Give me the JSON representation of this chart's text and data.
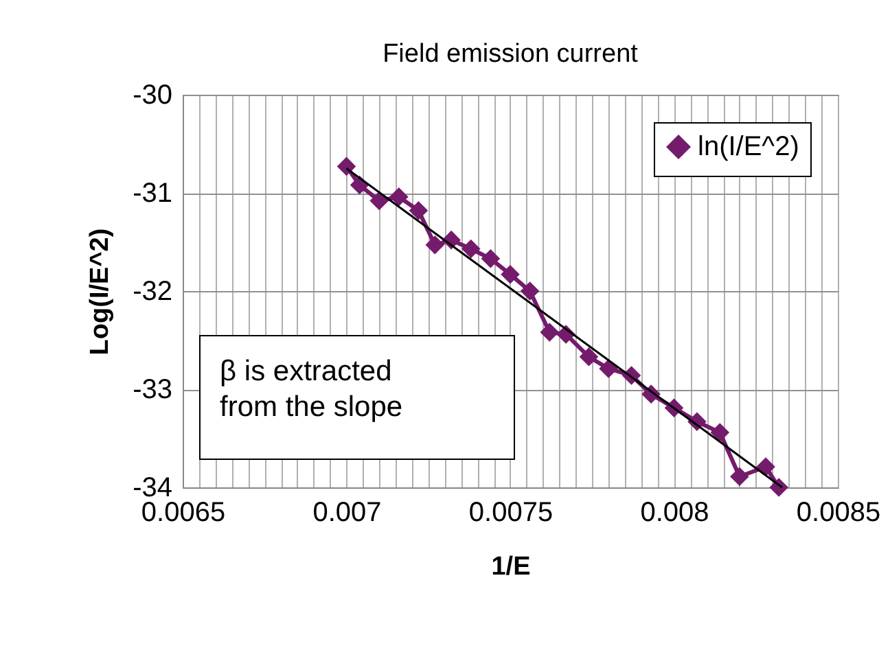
{
  "chart_data": {
    "type": "line",
    "title": "Field emission current",
    "xlabel": "1/E",
    "ylabel": "Log(I/E^2)",
    "series": [
      {
        "name": "ln(I/E^2)",
        "color": "#741b6c",
        "marker": "diamond",
        "x": [
          0.007,
          0.00704,
          0.0071,
          0.00716,
          0.00722,
          0.00727,
          0.00732,
          0.00738,
          0.00744,
          0.0075,
          0.00756,
          0.00762,
          0.00767,
          0.00774,
          0.0078,
          0.00787,
          0.00793,
          0.008,
          0.00807,
          0.00814,
          0.0082,
          0.00828,
          0.00832
        ],
        "values": [
          -30.73,
          -30.92,
          -31.08,
          -31.04,
          -31.18,
          -31.53,
          -31.48,
          -31.57,
          -31.67,
          -31.83,
          -32.0,
          -32.42,
          -32.44,
          -32.67,
          -32.79,
          -32.86,
          -33.05,
          -33.19,
          -33.33,
          -33.44,
          -33.89,
          -33.79,
          -34.0
        ]
      },
      {
        "type": "line",
        "color": "#000000",
        "marker": "none",
        "x": [
          0.007,
          0.00833
        ],
        "values": [
          -30.75,
          -34.0
        ]
      }
    ],
    "xlim": [
      0.0065,
      0.0085
    ],
    "xticks": [
      0.0065,
      {
        "value": 0.00655,
        "label": null
      },
      {
        "value": 0.0066,
        "label": null
      },
      {
        "value": 0.00665,
        "label": null
      },
      {
        "value": 0.0067,
        "label": null
      },
      {
        "value": 0.00675,
        "label": null
      },
      {
        "value": 0.0068,
        "label": null
      },
      {
        "value": 0.00685,
        "label": null
      },
      {
        "value": 0.0069,
        "label": null
      },
      {
        "value": 0.00695,
        "label": null
      },
      0.007,
      {
        "value": 0.00705,
        "label": null
      },
      {
        "value": 0.0071,
        "label": null
      },
      {
        "value": 0.00715,
        "label": null
      },
      {
        "value": 0.0072,
        "label": null
      },
      {
        "value": 0.00725,
        "label": null
      },
      {
        "value": 0.0073,
        "label": null
      },
      {
        "value": 0.00735,
        "label": null
      },
      {
        "value": 0.0074,
        "label": null
      },
      {
        "value": 0.00745,
        "label": null
      },
      0.0075,
      {
        "value": 0.00755,
        "label": null
      },
      {
        "value": 0.0076,
        "label": null
      },
      {
        "value": 0.00765,
        "label": null
      },
      {
        "value": 0.0077,
        "label": null
      },
      {
        "value": 0.00775,
        "label": null
      },
      {
        "value": 0.0078,
        "label": null
      },
      {
        "value": 0.00785,
        "label": null
      },
      {
        "value": 0.0079,
        "label": null
      },
      {
        "value": 0.00795,
        "label": null
      },
      0.008,
      {
        "value": 0.00805,
        "label": null
      },
      {
        "value": 0.0081,
        "label": null
      },
      {
        "value": 0.00815,
        "label": null
      },
      {
        "value": 0.0082,
        "label": null
      },
      {
        "value": 0.00825,
        "label": null
      },
      {
        "value": 0.0083,
        "label": null
      },
      {
        "value": 0.00835,
        "label": null
      },
      {
        "value": 0.0084,
        "label": null
      },
      {
        "value": 0.00845,
        "label": null
      },
      0.0085
    ],
    "ylim": [
      -34,
      -30
    ],
    "yticks": [
      -34,
      -33,
      -32,
      -31,
      -30
    ],
    "grid": true,
    "legend": "top right",
    "line_style": "solid",
    "annotations": [
      "β is extracted\nfrom the slope"
    ]
  }
}
